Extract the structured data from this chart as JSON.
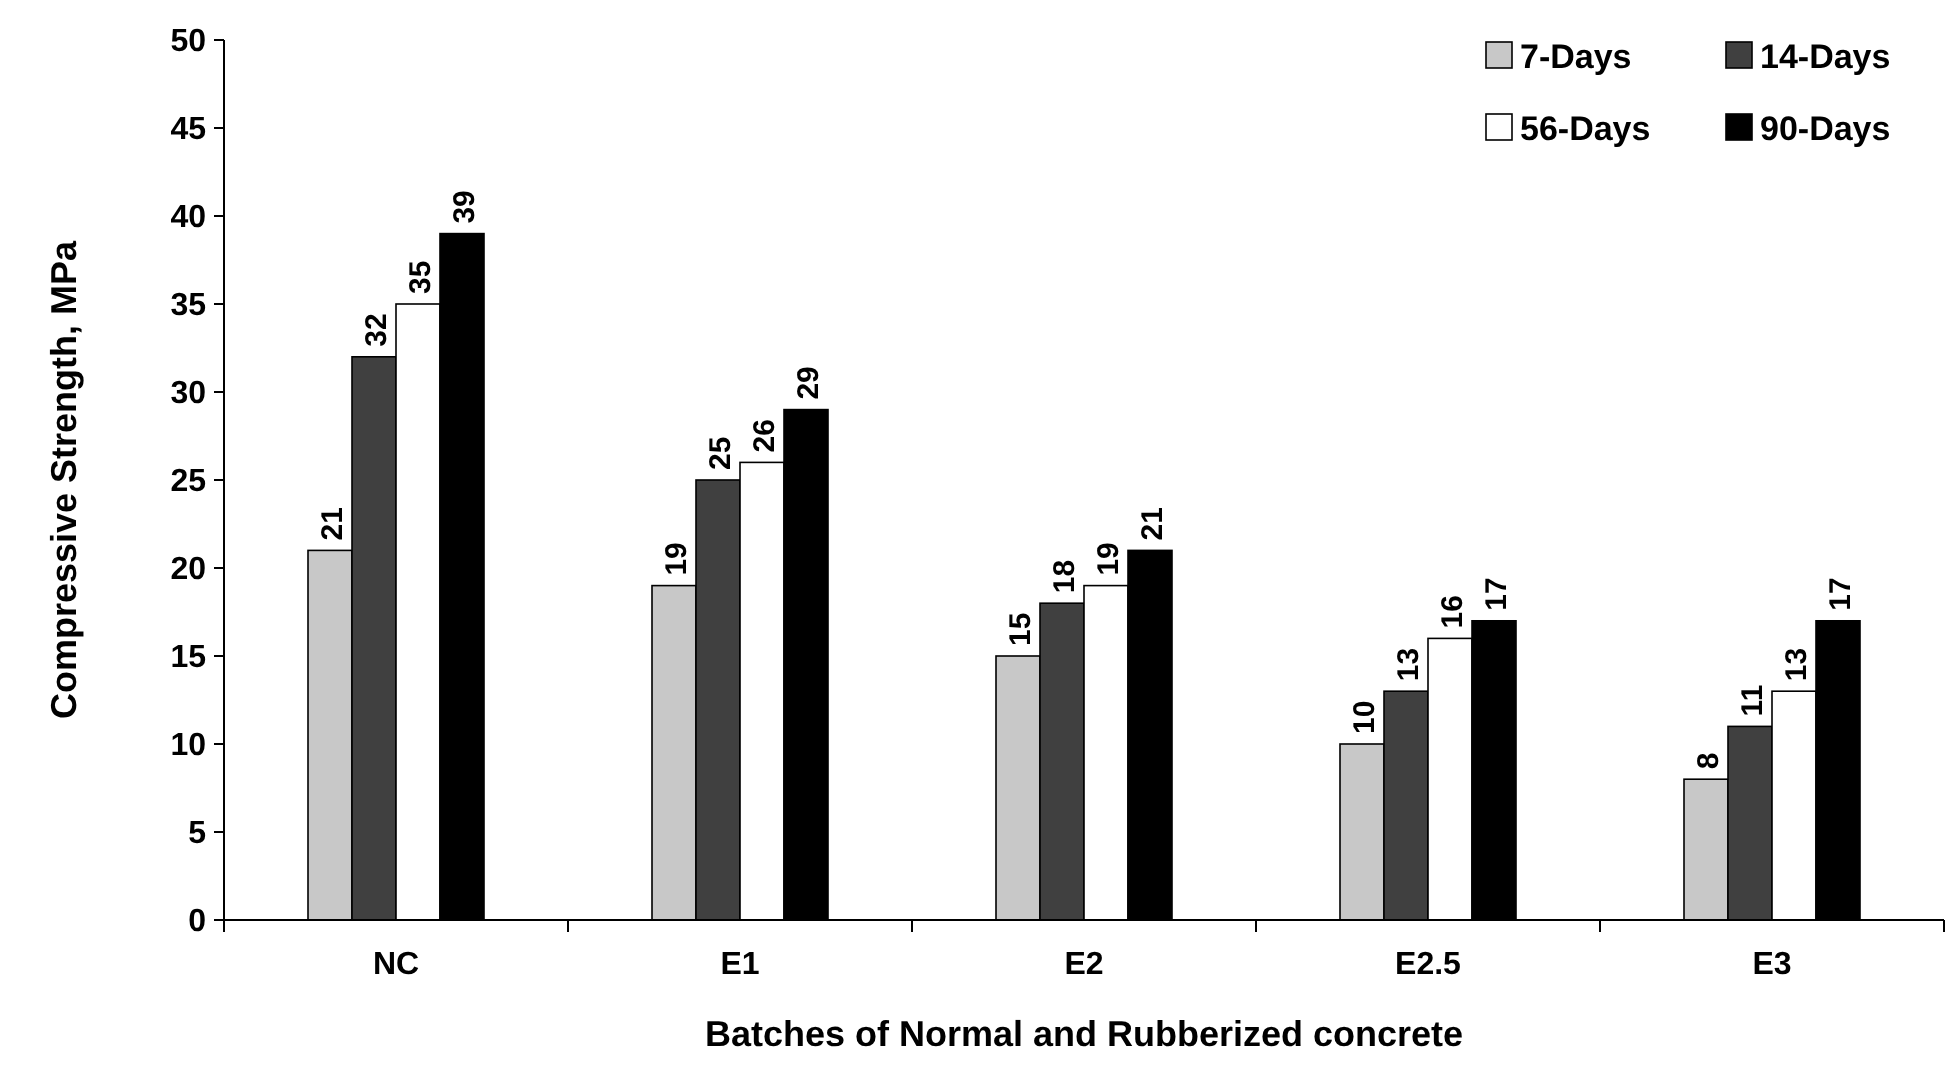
{
  "chart_data": {
    "type": "bar",
    "xlabel": "Batches of Normal and Rubberized concrete",
    "ylabel": "Compressive Strength, MPa",
    "categories": [
      "NC",
      "E1",
      "E2",
      "E2.5",
      "E3"
    ],
    "series": [
      {
        "name": "7-Days",
        "color": "#c8c8c8",
        "values": [
          21,
          19,
          15,
          10,
          8
        ]
      },
      {
        "name": "14-Days",
        "color": "#404040",
        "values": [
          32,
          25,
          18,
          13,
          11
        ]
      },
      {
        "name": "56-Days",
        "color": "#ffffff",
        "values": [
          35,
          26,
          19,
          16,
          13
        ]
      },
      {
        "name": "90-Days",
        "color": "#000000",
        "values": [
          39,
          29,
          21,
          17,
          17
        ]
      }
    ],
    "ylim": [
      0,
      50
    ],
    "yticks": [
      0,
      5,
      10,
      15,
      20,
      25,
      30,
      35,
      40,
      45,
      50
    ],
    "grid": false,
    "legend": "top right",
    "data_labels": true
  }
}
